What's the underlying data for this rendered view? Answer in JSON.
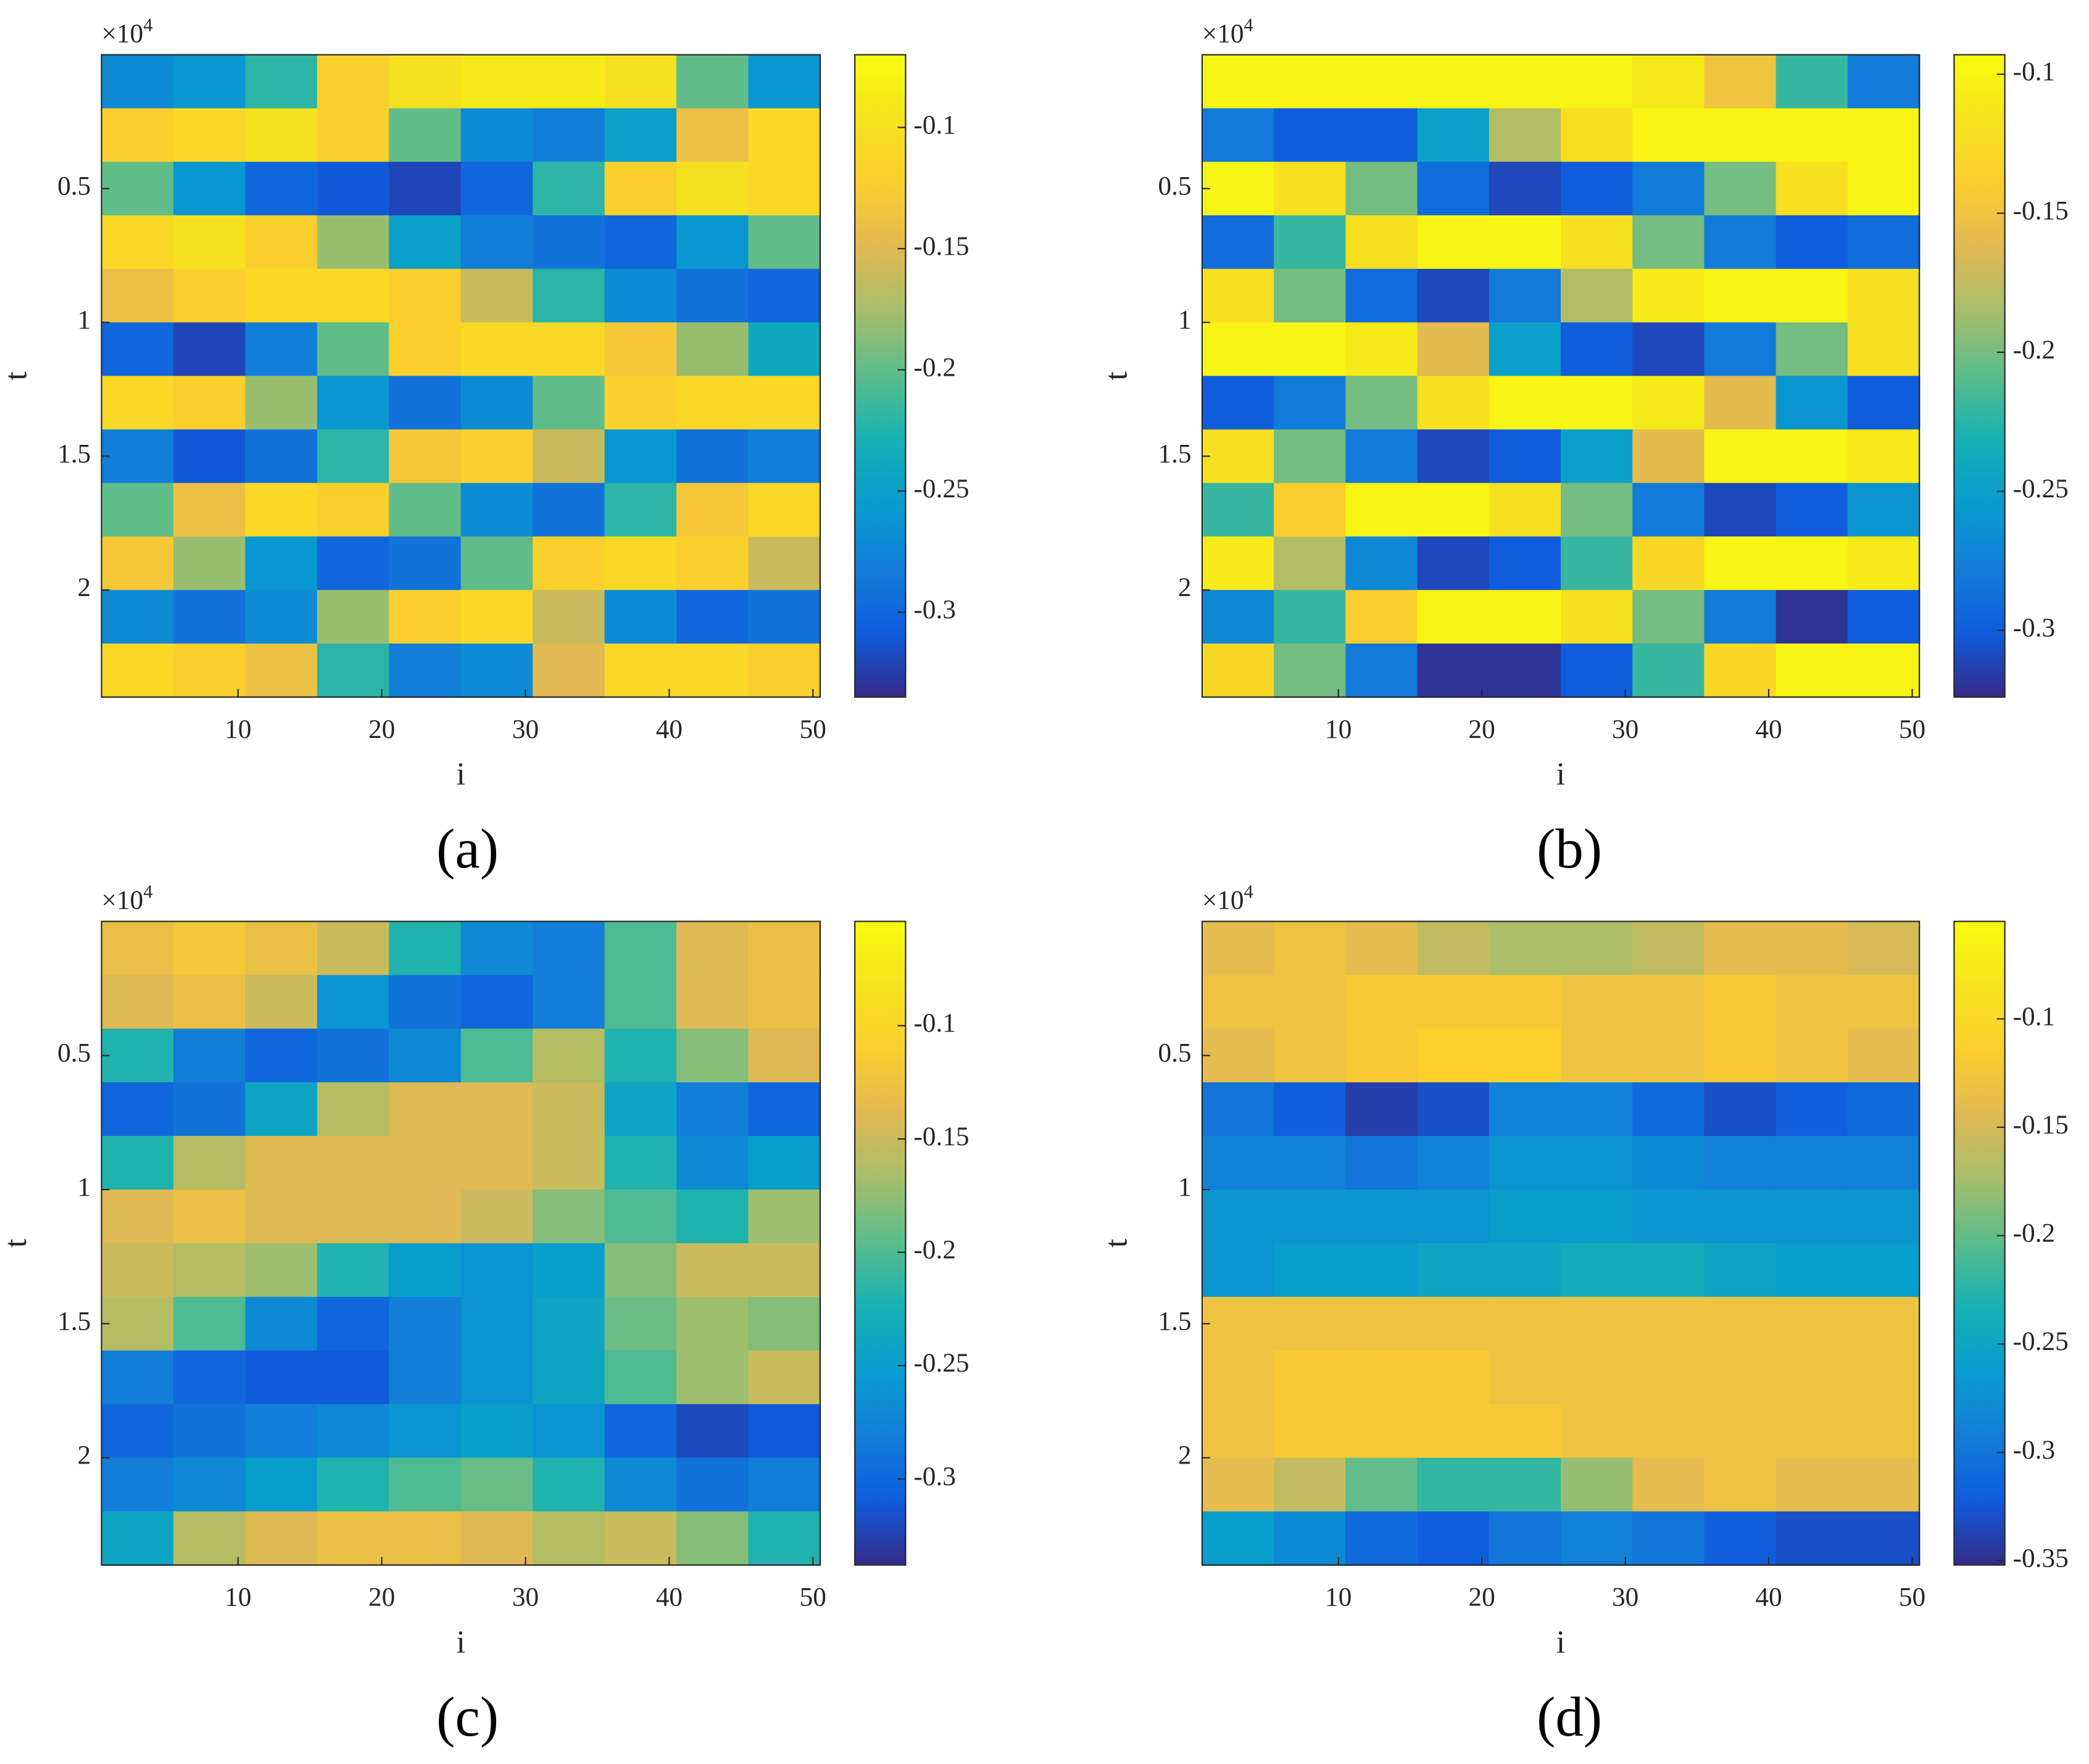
{
  "chart_data": [
    {
      "type": "heatmap",
      "panel_label": "(a)",
      "xlabel": "i",
      "ylabel": "t",
      "y_multiplier": "×10",
      "y_exponent": "4",
      "colormap": "parula",
      "y_reversed": true,
      "x": [
        3,
        8,
        13,
        18,
        23,
        28,
        33,
        38,
        43,
        48
      ],
      "y": [
        0.1,
        0.3,
        0.5,
        0.7,
        0.9,
        1.1,
        1.3,
        1.5,
        1.7,
        1.9,
        2.1,
        2.3
      ],
      "xlim": [
        0.5,
        50.5
      ],
      "ylim": [
        0,
        2.4
      ],
      "xticks": [
        10,
        20,
        30,
        40,
        50
      ],
      "yticks": [
        0.5,
        1,
        1.5,
        2
      ],
      "clim": [
        -0.335,
        -0.07
      ],
      "cticks": [
        -0.1,
        -0.15,
        -0.2,
        -0.25,
        -0.3
      ],
      "values": [
        [
          -0.27,
          -0.26,
          -0.22,
          -0.12,
          -0.1,
          -0.09,
          -0.09,
          -0.1,
          -0.2,
          -0.26
        ],
        [
          -0.12,
          -0.11,
          -0.1,
          -0.12,
          -0.2,
          -0.27,
          -0.28,
          -0.25,
          -0.14,
          -0.11
        ],
        [
          -0.2,
          -0.26,
          -0.3,
          -0.31,
          -0.32,
          -0.3,
          -0.22,
          -0.12,
          -0.1,
          -0.11
        ],
        [
          -0.11,
          -0.1,
          -0.12,
          -0.18,
          -0.25,
          -0.28,
          -0.29,
          -0.3,
          -0.26,
          -0.2
        ],
        [
          -0.14,
          -0.12,
          -0.11,
          -0.11,
          -0.12,
          -0.16,
          -0.22,
          -0.27,
          -0.29,
          -0.3
        ],
        [
          -0.3,
          -0.32,
          -0.28,
          -0.2,
          -0.12,
          -0.11,
          -0.11,
          -0.13,
          -0.18,
          -0.24
        ],
        [
          -0.11,
          -0.12,
          -0.18,
          -0.26,
          -0.29,
          -0.27,
          -0.2,
          -0.12,
          -0.11,
          -0.11
        ],
        [
          -0.28,
          -0.31,
          -0.29,
          -0.22,
          -0.13,
          -0.12,
          -0.16,
          -0.26,
          -0.29,
          -0.28
        ],
        [
          -0.2,
          -0.14,
          -0.11,
          -0.12,
          -0.2,
          -0.27,
          -0.29,
          -0.22,
          -0.13,
          -0.11
        ],
        [
          -0.13,
          -0.18,
          -0.26,
          -0.3,
          -0.29,
          -0.2,
          -0.12,
          -0.11,
          -0.12,
          -0.16
        ],
        [
          -0.27,
          -0.29,
          -0.27,
          -0.18,
          -0.12,
          -0.11,
          -0.16,
          -0.27,
          -0.3,
          -0.29
        ],
        [
          -0.11,
          -0.12,
          -0.14,
          -0.22,
          -0.28,
          -0.27,
          -0.15,
          -0.11,
          -0.11,
          -0.12
        ]
      ]
    },
    {
      "type": "heatmap",
      "panel_label": "(b)",
      "xlabel": "i",
      "ylabel": "t",
      "y_multiplier": "×10",
      "y_exponent": "4",
      "colormap": "parula",
      "y_reversed": true,
      "x": [
        3,
        8,
        13,
        18,
        23,
        28,
        33,
        38,
        43,
        48
      ],
      "y": [
        0.1,
        0.3,
        0.5,
        0.7,
        0.9,
        1.1,
        1.3,
        1.5,
        1.7,
        1.9,
        2.1,
        2.3
      ],
      "xlim": [
        0.5,
        50.5
      ],
      "ylim": [
        0,
        2.4
      ],
      "xticks": [
        10,
        20,
        30,
        40,
        50
      ],
      "yticks": [
        0.5,
        1,
        1.5,
        2
      ],
      "clim": [
        -0.324,
        -0.093
      ],
      "cticks": [
        -0.1,
        -0.15,
        -0.2,
        -0.25,
        -0.3
      ],
      "values": [
        [
          -0.1,
          -0.1,
          -0.1,
          -0.1,
          -0.1,
          -0.1,
          -0.11,
          -0.15,
          -0.22,
          -0.28
        ],
        [
          -0.28,
          -0.3,
          -0.3,
          -0.25,
          -0.18,
          -0.12,
          -0.1,
          -0.1,
          -0.1,
          -0.1
        ],
        [
          -0.1,
          -0.12,
          -0.2,
          -0.29,
          -0.31,
          -0.3,
          -0.28,
          -0.2,
          -0.12,
          -0.1
        ],
        [
          -0.29,
          -0.22,
          -0.12,
          -0.1,
          -0.1,
          -0.12,
          -0.2,
          -0.28,
          -0.3,
          -0.29
        ],
        [
          -0.12,
          -0.2,
          -0.29,
          -0.31,
          -0.28,
          -0.18,
          -0.11,
          -0.1,
          -0.1,
          -0.12
        ],
        [
          -0.1,
          -0.1,
          -0.11,
          -0.16,
          -0.25,
          -0.3,
          -0.31,
          -0.28,
          -0.2,
          -0.12
        ],
        [
          -0.3,
          -0.28,
          -0.2,
          -0.12,
          -0.1,
          -0.1,
          -0.11,
          -0.16,
          -0.26,
          -0.3
        ],
        [
          -0.12,
          -0.2,
          -0.28,
          -0.31,
          -0.3,
          -0.25,
          -0.16,
          -0.1,
          -0.1,
          -0.11
        ],
        [
          -0.22,
          -0.14,
          -0.1,
          -0.1,
          -0.12,
          -0.2,
          -0.28,
          -0.31,
          -0.3,
          -0.26
        ],
        [
          -0.11,
          -0.18,
          -0.27,
          -0.31,
          -0.3,
          -0.22,
          -0.13,
          -0.1,
          -0.1,
          -0.11
        ],
        [
          -0.27,
          -0.22,
          -0.14,
          -0.1,
          -0.1,
          -0.12,
          -0.2,
          -0.28,
          -0.32,
          -0.3
        ],
        [
          -0.13,
          -0.2,
          -0.28,
          -0.32,
          -0.32,
          -0.3,
          -0.22,
          -0.13,
          -0.1,
          -0.1
        ]
      ]
    },
    {
      "type": "heatmap",
      "panel_label": "(c)",
      "xlabel": "i",
      "ylabel": "t",
      "y_multiplier": "×10",
      "y_exponent": "4",
      "colormap": "parula",
      "y_reversed": true,
      "x": [
        3,
        8,
        13,
        18,
        23,
        28,
        33,
        38,
        43,
        48
      ],
      "y": [
        0.1,
        0.3,
        0.5,
        0.7,
        0.9,
        1.1,
        1.3,
        1.5,
        1.7,
        1.9,
        2.1,
        2.3
      ],
      "xlim": [
        0.5,
        50.5
      ],
      "ylim": [
        0,
        2.4
      ],
      "xticks": [
        10,
        20,
        30,
        40,
        50
      ],
      "yticks": [
        0.5,
        1,
        1.5,
        2
      ],
      "clim": [
        -0.338,
        -0.054
      ],
      "cticks": [
        -0.1,
        -0.15,
        -0.2,
        -0.25,
        -0.3
      ],
      "values": [
        [
          -0.13,
          -0.12,
          -0.13,
          -0.15,
          -0.22,
          -0.27,
          -0.28,
          -0.2,
          -0.14,
          -0.13
        ],
        [
          -0.14,
          -0.13,
          -0.15,
          -0.26,
          -0.29,
          -0.3,
          -0.28,
          -0.2,
          -0.14,
          -0.13
        ],
        [
          -0.22,
          -0.28,
          -0.3,
          -0.29,
          -0.27,
          -0.2,
          -0.16,
          -0.22,
          -0.18,
          -0.14
        ],
        [
          -0.3,
          -0.29,
          -0.24,
          -0.16,
          -0.14,
          -0.14,
          -0.15,
          -0.24,
          -0.28,
          -0.3
        ],
        [
          -0.22,
          -0.16,
          -0.14,
          -0.14,
          -0.14,
          -0.14,
          -0.15,
          -0.22,
          -0.27,
          -0.25
        ],
        [
          -0.14,
          -0.13,
          -0.14,
          -0.14,
          -0.14,
          -0.15,
          -0.18,
          -0.2,
          -0.22,
          -0.17
        ],
        [
          -0.15,
          -0.16,
          -0.17,
          -0.22,
          -0.25,
          -0.26,
          -0.25,
          -0.18,
          -0.15,
          -0.15
        ],
        [
          -0.16,
          -0.2,
          -0.27,
          -0.3,
          -0.28,
          -0.26,
          -0.24,
          -0.19,
          -0.17,
          -0.18
        ],
        [
          -0.28,
          -0.3,
          -0.31,
          -0.31,
          -0.28,
          -0.26,
          -0.24,
          -0.2,
          -0.17,
          -0.15
        ],
        [
          -0.3,
          -0.29,
          -0.28,
          -0.27,
          -0.26,
          -0.25,
          -0.26,
          -0.3,
          -0.32,
          -0.31
        ],
        [
          -0.28,
          -0.27,
          -0.25,
          -0.22,
          -0.2,
          -0.19,
          -0.22,
          -0.27,
          -0.29,
          -0.28
        ],
        [
          -0.24,
          -0.16,
          -0.14,
          -0.13,
          -0.13,
          -0.14,
          -0.16,
          -0.15,
          -0.18,
          -0.22
        ]
      ]
    },
    {
      "type": "heatmap",
      "panel_label": "(d)",
      "xlabel": "i",
      "ylabel": "t",
      "y_multiplier": "×10",
      "y_exponent": "4",
      "colormap": "parula",
      "y_reversed": true,
      "x": [
        3,
        8,
        13,
        18,
        23,
        28,
        33,
        38,
        43,
        48
      ],
      "y": [
        0.1,
        0.3,
        0.5,
        0.7,
        0.9,
        1.1,
        1.3,
        1.5,
        1.7,
        1.9,
        2.1,
        2.3
      ],
      "xlim": [
        0.5,
        50.5
      ],
      "ylim": [
        0,
        2.4
      ],
      "xticks": [
        10,
        20,
        30,
        40,
        50
      ],
      "yticks": [
        0.5,
        1,
        1.5,
        2
      ],
      "clim": [
        -0.352,
        -0.055
      ],
      "cticks": [
        -0.1,
        -0.15,
        -0.2,
        -0.25,
        -0.3,
        -0.35
      ],
      "values": [
        [
          -0.14,
          -0.13,
          -0.14,
          -0.16,
          -0.17,
          -0.17,
          -0.16,
          -0.14,
          -0.14,
          -0.15
        ],
        [
          -0.13,
          -0.13,
          -0.12,
          -0.12,
          -0.12,
          -0.13,
          -0.13,
          -0.12,
          -0.13,
          -0.13
        ],
        [
          -0.14,
          -0.13,
          -0.12,
          -0.11,
          -0.11,
          -0.13,
          -0.13,
          -0.12,
          -0.13,
          -0.14
        ],
        [
          -0.3,
          -0.32,
          -0.34,
          -0.33,
          -0.29,
          -0.29,
          -0.31,
          -0.33,
          -0.32,
          -0.31
        ],
        [
          -0.29,
          -0.29,
          -0.3,
          -0.29,
          -0.27,
          -0.27,
          -0.28,
          -0.29,
          -0.29,
          -0.29
        ],
        [
          -0.27,
          -0.27,
          -0.27,
          -0.27,
          -0.26,
          -0.26,
          -0.27,
          -0.27,
          -0.27,
          -0.27
        ],
        [
          -0.27,
          -0.26,
          -0.26,
          -0.25,
          -0.25,
          -0.24,
          -0.24,
          -0.25,
          -0.26,
          -0.26
        ],
        [
          -0.13,
          -0.13,
          -0.13,
          -0.13,
          -0.13,
          -0.13,
          -0.13,
          -0.13,
          -0.13,
          -0.13
        ],
        [
          -0.13,
          -0.12,
          -0.12,
          -0.12,
          -0.13,
          -0.13,
          -0.13,
          -0.13,
          -0.13,
          -0.13
        ],
        [
          -0.13,
          -0.12,
          -0.12,
          -0.12,
          -0.12,
          -0.13,
          -0.13,
          -0.13,
          -0.13,
          -0.13
        ],
        [
          -0.14,
          -0.16,
          -0.2,
          -0.22,
          -0.22,
          -0.18,
          -0.14,
          -0.13,
          -0.14,
          -0.14
        ],
        [
          -0.26,
          -0.28,
          -0.31,
          -0.32,
          -0.3,
          -0.29,
          -0.3,
          -0.32,
          -0.33,
          -0.33
        ]
      ]
    }
  ]
}
